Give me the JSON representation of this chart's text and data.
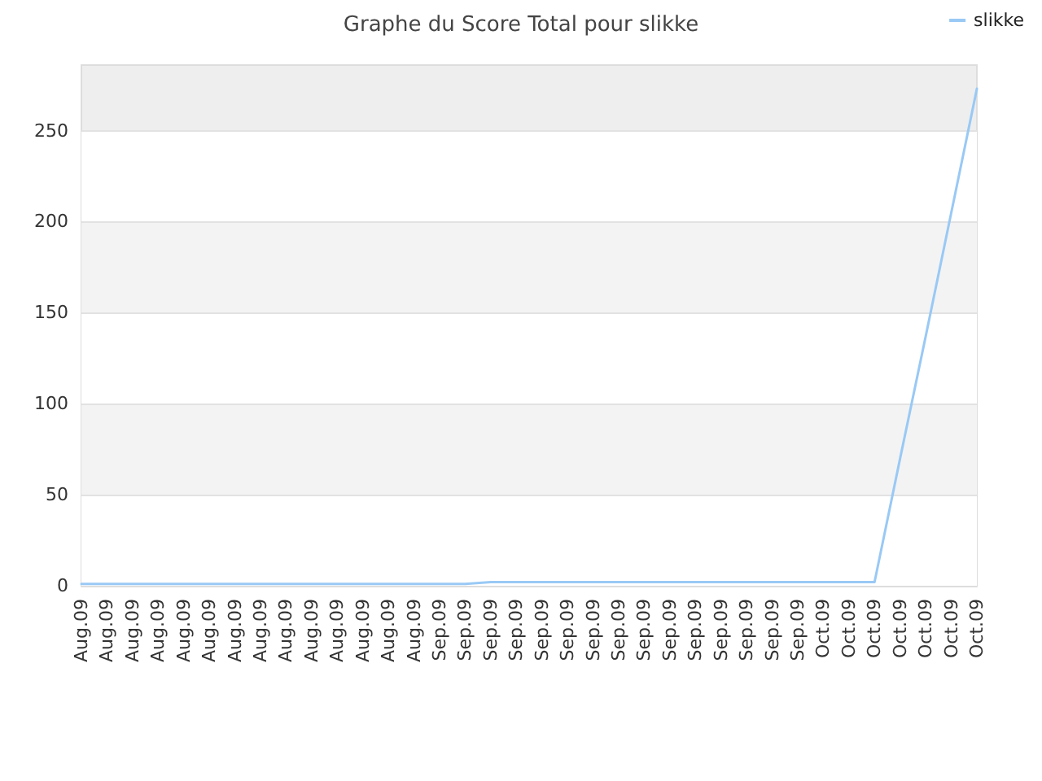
{
  "chart_data": {
    "type": "line",
    "title": "Graphe du Score Total pour slikke",
    "categories": [
      "Aug.09",
      "Aug.09",
      "Aug.09",
      "Aug.09",
      "Aug.09",
      "Aug.09",
      "Aug.09",
      "Aug.09",
      "Aug.09",
      "Aug.09",
      "Aug.09",
      "Aug.09",
      "Aug.09",
      "Aug.09",
      "Sep.09",
      "Sep.09",
      "Sep.09",
      "Sep.09",
      "Sep.09",
      "Sep.09",
      "Sep.09",
      "Sep.09",
      "Sep.09",
      "Sep.09",
      "Sep.09",
      "Sep.09",
      "Sep.09",
      "Sep.09",
      "Sep.09",
      "Oct.09",
      "Oct.09",
      "Oct.09",
      "Oct.09",
      "Oct.09",
      "Oct.09",
      "Oct.09"
    ],
    "series": [
      {
        "name": "slikke",
        "color": "#99c9f5",
        "values": [
          1,
          1,
          1,
          1,
          1,
          1,
          1,
          1,
          1,
          1,
          1,
          1,
          1,
          1,
          1,
          1,
          2,
          2,
          2,
          2,
          2,
          2,
          2,
          2,
          2,
          2,
          2,
          2,
          2,
          2,
          2,
          2,
          70,
          137,
          205,
          273
        ]
      }
    ],
    "ylim": [
      0,
      286
    ],
    "yticks": [
      0,
      50,
      100,
      150,
      200,
      250
    ],
    "grid": "y",
    "legend": "top right",
    "marker": "none"
  }
}
